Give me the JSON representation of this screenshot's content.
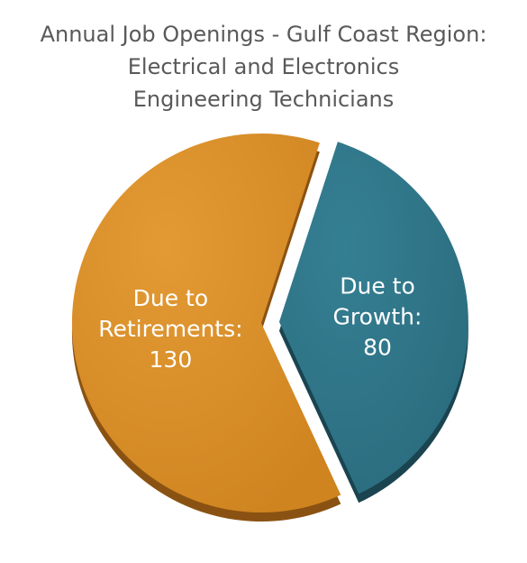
{
  "chart_data": {
    "type": "pie",
    "title_lines": [
      "Annual Job Openings - Gulf Coast Region:",
      "Electrical and Electronics",
      "Engineering Technicians"
    ],
    "slices": [
      {
        "label_lines": [
          "Due to",
          "Retirements:",
          "130"
        ],
        "value": 130,
        "color": "#d68a24",
        "side_color": "#8a5212"
      },
      {
        "label_lines": [
          "Due to",
          "Growth:",
          "80"
        ],
        "value": 80,
        "color": "#2f7487",
        "side_color": "#1a4450",
        "exploded": true
      }
    ]
  }
}
